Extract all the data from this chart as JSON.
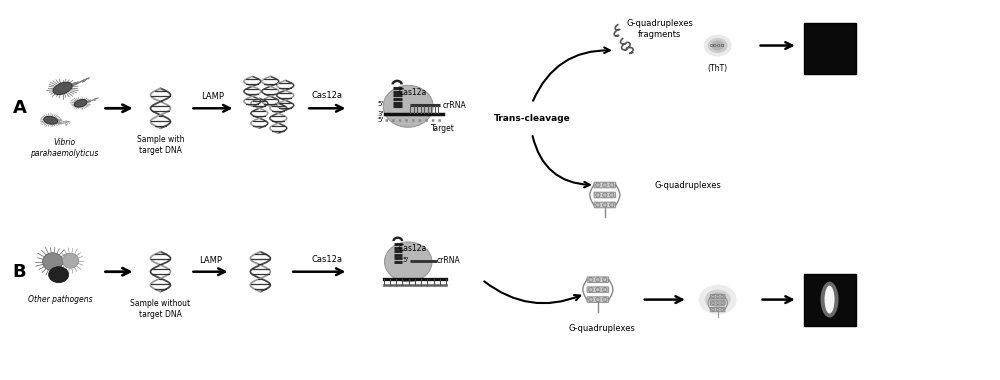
{
  "background_color": "#ffffff",
  "fig_width": 10.0,
  "fig_height": 3.8,
  "dpi": 100,
  "xlim": [
    0,
    10
  ],
  "ylim": [
    0,
    3.8
  ],
  "text_vibrio": "Vibrio\nparahaemolyticus",
  "text_other": "Other pathogens",
  "text_sample_with": "Sample with\ntarget DNA",
  "text_sample_without": "Sample without\ntarget DNA",
  "text_lamp": "LAMP",
  "text_cas12a": "Cas12a",
  "text_trans_cleavage": "Trans-cleavage",
  "text_thT": "(ThT)",
  "text_gquad_frag": "G-quadruplexes\nfragments",
  "text_gquad_1": "G-quadruplexes",
  "text_gquad_2": "G-quadruplexes",
  "text_crRNA": "crRNA",
  "text_target": "Target",
  "label_A": "A",
  "label_B": "B",
  "black": "#000000",
  "white": "#ffffff",
  "dark_gray": "#404040",
  "mid_gray": "#888888",
  "light_gray": "#bbbbbb",
  "very_light_gray": "#dddddd"
}
